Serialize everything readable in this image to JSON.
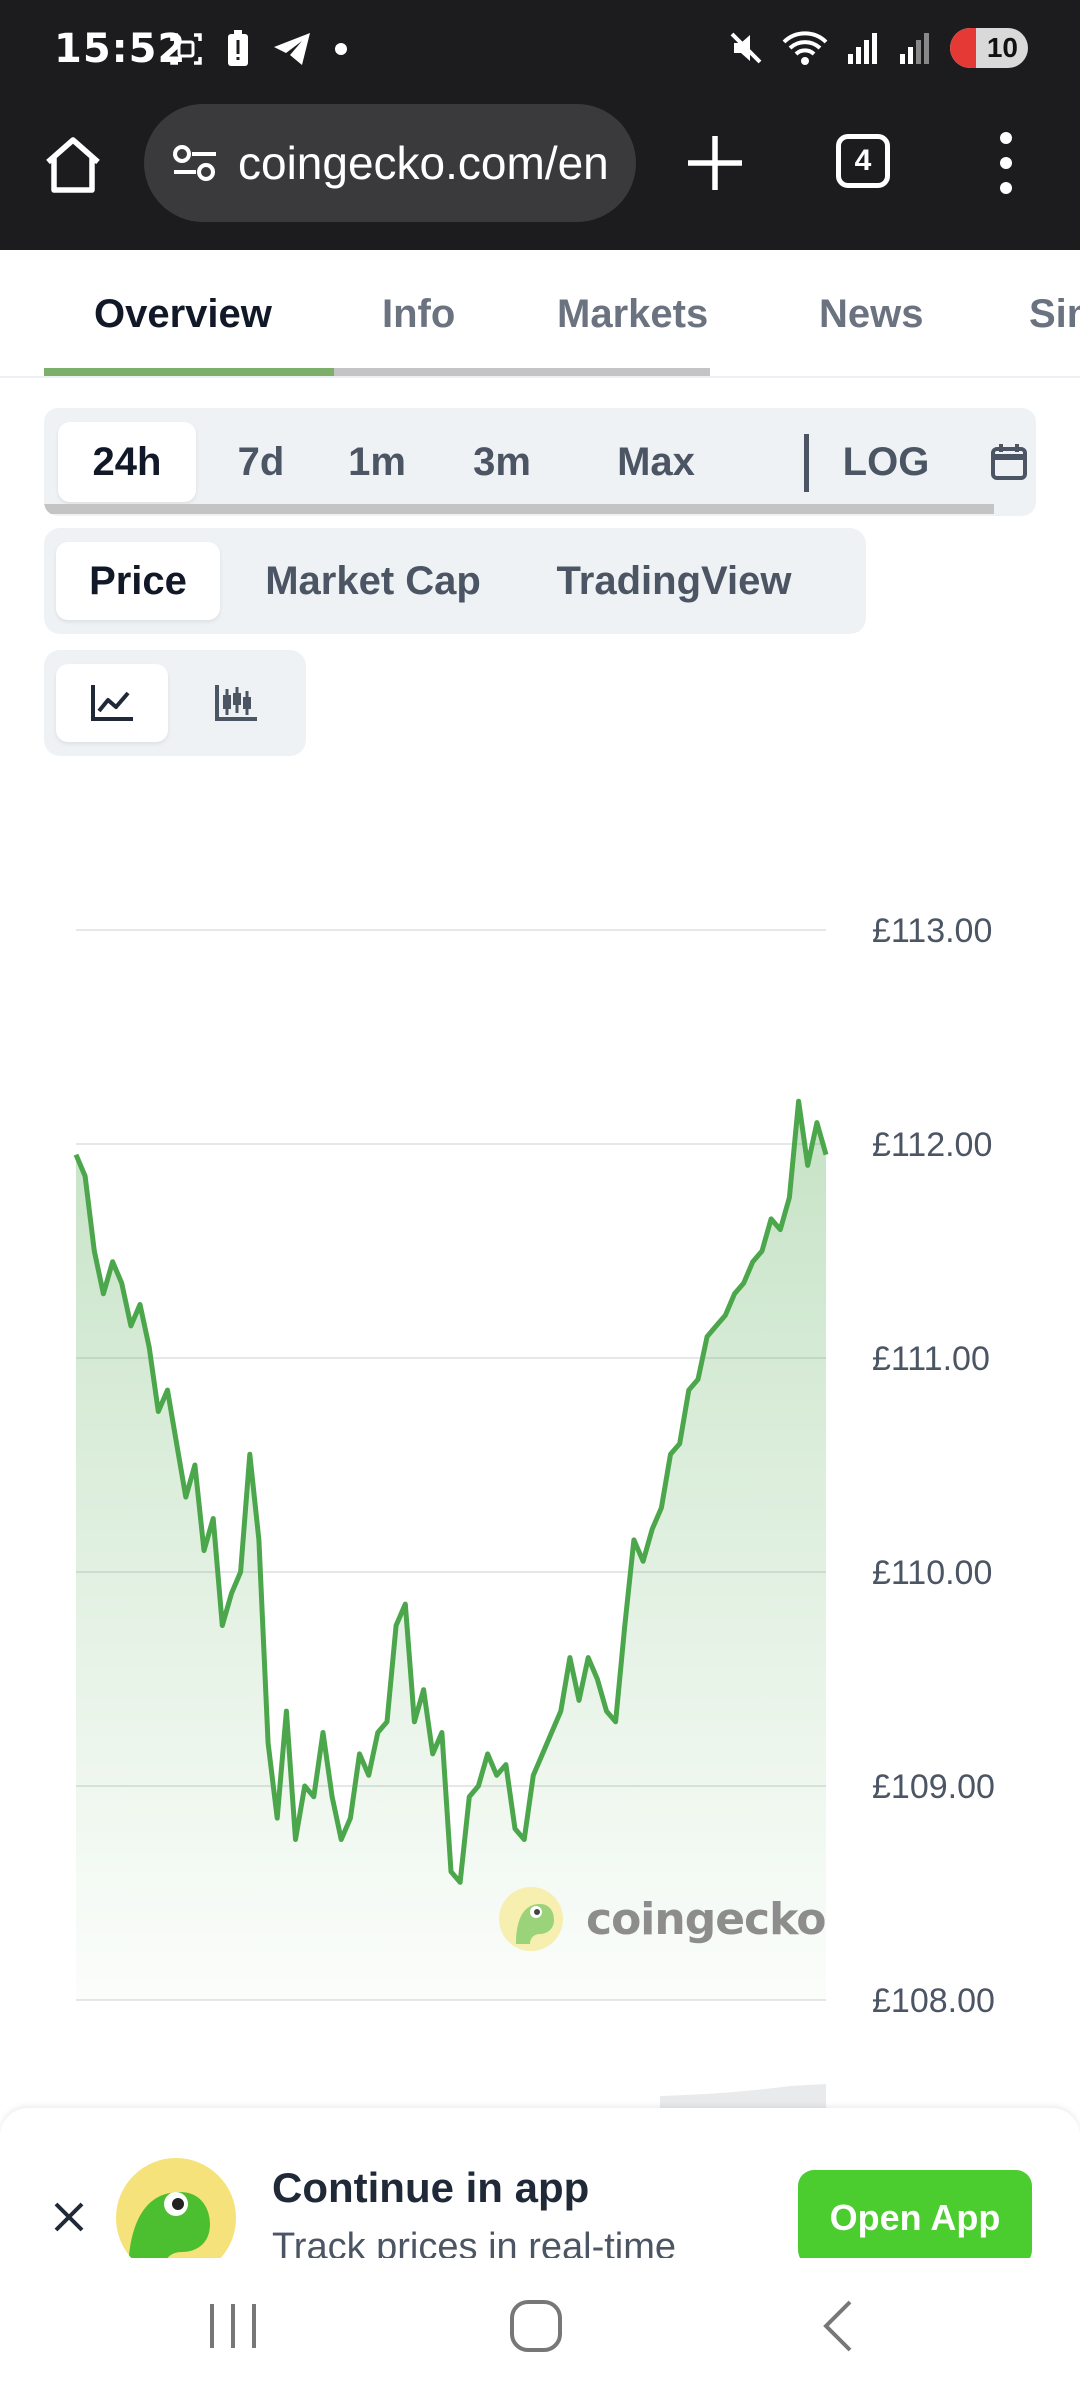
{
  "status_bar": {
    "time": "15:52",
    "battery": "10",
    "icons": [
      "screenshot-icon",
      "battery-alert-icon",
      "telegram-icon",
      "dot-icon",
      "mute-icon",
      "wifi-icon",
      "signal-icon",
      "signal-icon"
    ]
  },
  "browser": {
    "url": "coingecko.com/en",
    "tab_count": "4"
  },
  "tabs": [
    {
      "label": "Overview",
      "active": true
    },
    {
      "label": "Info"
    },
    {
      "label": "Markets"
    },
    {
      "label": "News"
    },
    {
      "label": "Similar Coins"
    }
  ],
  "ranges": [
    "24h",
    "7d",
    "1m",
    "3m",
    "Max",
    "LOG"
  ],
  "range_active": "24h",
  "metrics": [
    "Price",
    "Market Cap",
    "TradingView"
  ],
  "metric_active": "Price",
  "chart_types": [
    "line-chart-icon",
    "candlestick-icon"
  ],
  "watermark": "coingecko",
  "chart_data": {
    "type": "area",
    "title": "",
    "xlabel": "",
    "ylabel": "",
    "currency": "£",
    "yticks": [
      "£113.00",
      "£112.00",
      "£111.00",
      "£110.00",
      "£109.00",
      "£108.00"
    ],
    "ylim": [
      108,
      113
    ],
    "grid": true,
    "color": "#4ca64c",
    "series": [
      {
        "values": [
          111.95,
          111.85,
          111.5,
          111.3,
          111.45,
          111.35,
          111.15,
          111.25,
          111.05,
          110.75,
          110.85,
          110.6,
          110.35,
          110.5,
          110.1,
          110.25,
          109.75,
          109.9,
          110.0,
          110.55,
          110.15,
          109.2,
          108.85,
          109.35,
          108.75,
          109.0,
          108.95,
          109.25,
          108.95,
          108.75,
          108.85,
          109.15,
          109.05,
          109.25,
          109.3,
          109.75,
          109.85,
          109.3,
          109.45,
          109.15,
          109.25,
          108.6,
          108.55,
          108.95,
          109.0,
          109.15,
          109.05,
          109.1,
          108.8,
          108.75,
          109.05,
          109.15,
          109.25,
          109.35,
          109.6,
          109.4,
          109.6,
          109.5,
          109.35,
          109.3,
          109.75,
          110.15,
          110.05,
          110.2,
          110.3,
          110.55,
          110.6,
          110.85,
          110.9,
          111.1,
          111.15,
          111.2,
          111.3,
          111.35,
          111.45,
          111.5,
          111.65,
          111.6,
          111.75,
          112.2,
          111.9,
          112.1,
          111.95
        ],
        "note": ""
      }
    ]
  },
  "banner": {
    "title": "Continue in app",
    "subtitle": "Track prices in real-time",
    "button": "Open App"
  }
}
